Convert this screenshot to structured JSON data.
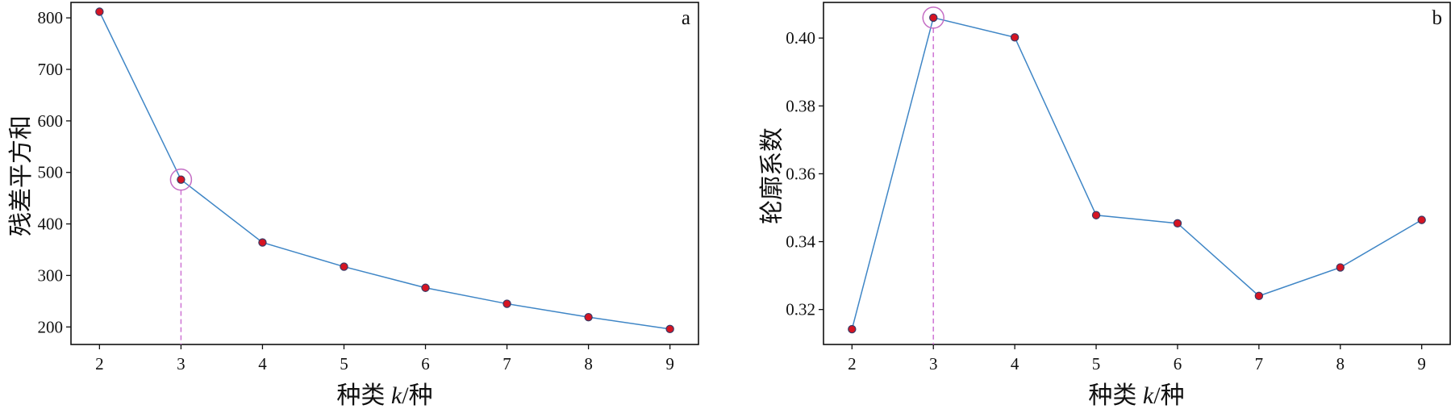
{
  "chart_data": [
    {
      "type": "line",
      "panel_label": "a",
      "xlabel_prefix": "种类 ",
      "xlabel_var": "k",
      "xlabel_suffix": "/种",
      "ylabel": "残差平方和",
      "x": [
        2,
        3,
        4,
        5,
        6,
        7,
        8,
        9
      ],
      "values": [
        812,
        486,
        364,
        317,
        276,
        245,
        219,
        196
      ],
      "xlim": [
        1.65,
        9.35
      ],
      "ylim": [
        166,
        830
      ],
      "yticks": [
        200,
        300,
        400,
        500,
        600,
        700,
        800
      ],
      "ytick_labels": [
        "200",
        "300",
        "400",
        "500",
        "600",
        "700",
        "800"
      ],
      "xticks": [
        2,
        3,
        4,
        5,
        6,
        7,
        8,
        9
      ],
      "xtick_labels": [
        "2",
        "3",
        "4",
        "5",
        "6",
        "7",
        "8",
        "9"
      ],
      "highlight_x": 3,
      "grid": false,
      "colors": {
        "line": "#3f86c6",
        "marker": "#d61422",
        "highlight": "#c46cc4"
      }
    },
    {
      "type": "line",
      "panel_label": "b",
      "xlabel_prefix": "种类 ",
      "xlabel_var": "k",
      "xlabel_suffix": "/种",
      "ylabel": "轮廓系数",
      "x": [
        2,
        3,
        4,
        5,
        6,
        7,
        8,
        9
      ],
      "values": [
        0.3142,
        0.406,
        0.4002,
        0.3478,
        0.3454,
        0.324,
        0.3324,
        0.3464
      ],
      "xlim": [
        1.65,
        9.35
      ],
      "ylim": [
        0.3097,
        0.4105
      ],
      "yticks": [
        0.32,
        0.34,
        0.36,
        0.38,
        0.4
      ],
      "ytick_labels": [
        "0.32",
        "0.34",
        "0.36",
        "0.38",
        "0.40"
      ],
      "xticks": [
        2,
        3,
        4,
        5,
        6,
        7,
        8,
        9
      ],
      "xtick_labels": [
        "2",
        "3",
        "4",
        "5",
        "6",
        "7",
        "8",
        "9"
      ],
      "highlight_x": 3,
      "grid": false,
      "colors": {
        "line": "#3f86c6",
        "marker": "#d61422",
        "highlight": "#c46cc4"
      }
    }
  ]
}
